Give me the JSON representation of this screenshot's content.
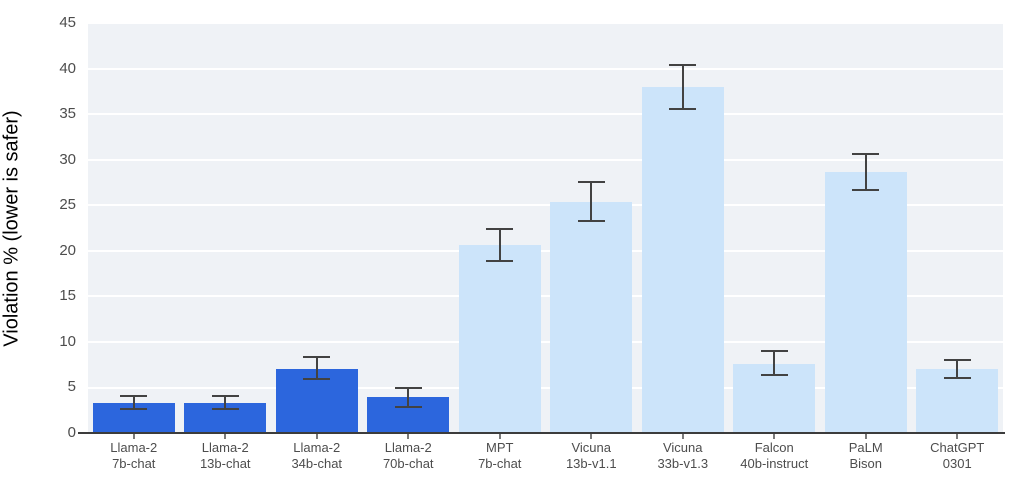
{
  "chart_data": {
    "type": "bar",
    "title": "",
    "xlabel": "",
    "ylabel": "Violation % (lower is safer)",
    "ylim": [
      0,
      45
    ],
    "yticks": [
      0,
      5,
      10,
      15,
      20,
      25,
      30,
      35,
      40,
      45
    ],
    "grid": "horizontal white gridlines on light panel, legend none",
    "categories": [
      [
        "Llama-2",
        "7b-chat"
      ],
      [
        "Llama-2",
        "13b-chat"
      ],
      [
        "Llama-2",
        "34b-chat"
      ],
      [
        "Llama-2",
        "70b-chat"
      ],
      [
        "MPT",
        "7b-chat"
      ],
      [
        "Vicuna",
        "13b-v1.1"
      ],
      [
        "Vicuna",
        "33b-v1.3"
      ],
      [
        "Falcon",
        "40b-instruct"
      ],
      [
        "PaLM",
        "Bison"
      ],
      [
        "ChatGPT",
        "0301"
      ]
    ],
    "series": [
      {
        "name": "Violation %",
        "values": [
          3.3,
          3.3,
          7.0,
          4.0,
          20.6,
          25.4,
          38.0,
          7.6,
          28.7,
          7.0
        ],
        "error_low": [
          2.6,
          2.6,
          5.9,
          2.9,
          18.9,
          23.3,
          35.6,
          6.4,
          26.7,
          6.0
        ],
        "error_high": [
          4.1,
          4.1,
          8.3,
          4.9,
          22.4,
          27.6,
          40.4,
          9.0,
          30.7,
          8.0
        ],
        "bar_colors": [
          "#2C66DD",
          "#2C66DD",
          "#2C66DD",
          "#2C66DD",
          "#CCE4FA",
          "#CCE4FA",
          "#CCE4FA",
          "#CCE4FA",
          "#CCE4FA",
          "#CCE4FA"
        ]
      }
    ]
  },
  "colors": {
    "dark_bar": "#2C66DD",
    "light_bar": "#CCE4FA",
    "panel_background": "#EFF2F6",
    "gridline": "#FFFFFF",
    "axis_line": "#3C3C3C",
    "error_bar": "#424242",
    "tick_label": "#4D4D4D",
    "axis_title": "#000000"
  }
}
